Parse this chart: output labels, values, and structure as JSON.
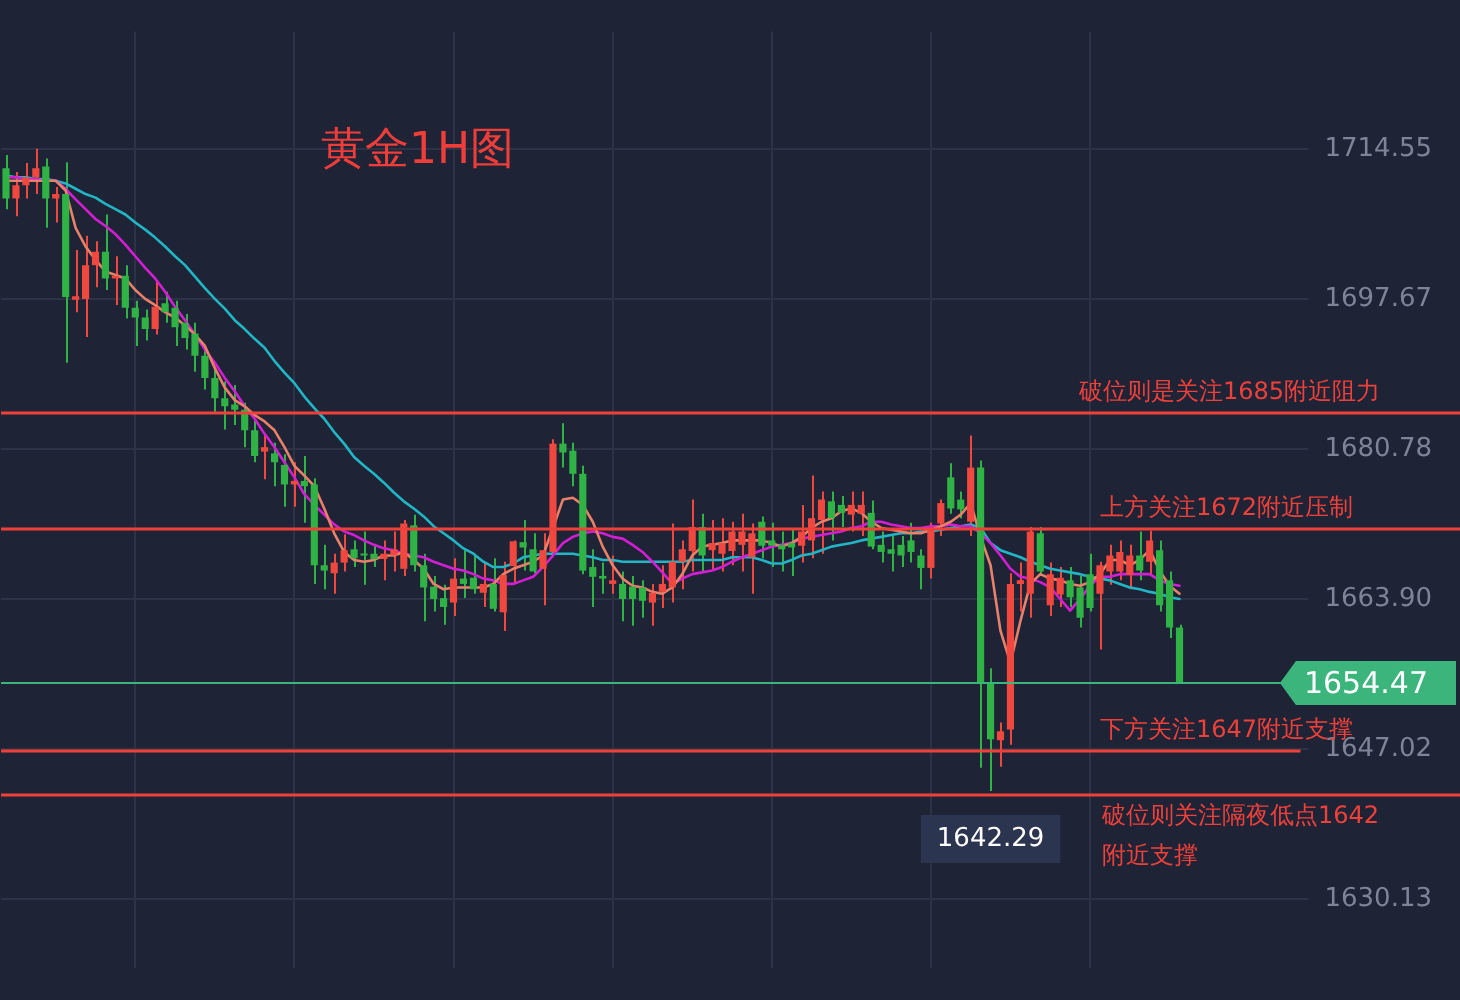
{
  "chart_data": {
    "type": "candlestick",
    "title": "黄金1H图",
    "categories": [
      null,
      null,
      null,
      null,
      null,
      null,
      null,
      null,
      null,
      null,
      null,
      null,
      null,
      null,
      null,
      null,
      null,
      null,
      null,
      null,
      null,
      null,
      null,
      null,
      null,
      null,
      null,
      null,
      null,
      null,
      null,
      null,
      null,
      null,
      null,
      null,
      null,
      null,
      null,
      null,
      null,
      null,
      null,
      null,
      null,
      null,
      null,
      null,
      null,
      null,
      null,
      null,
      null,
      null,
      null,
      null,
      null,
      null,
      null,
      null,
      null,
      null,
      null,
      null,
      null,
      null,
      null,
      null,
      null,
      null,
      null,
      null,
      null,
      null,
      null,
      null,
      null,
      null,
      null,
      null,
      null,
      null,
      null,
      null,
      null,
      null,
      null,
      null,
      null,
      null,
      null,
      null,
      null,
      null,
      null,
      null,
      null,
      null,
      null,
      null,
      null,
      null,
      null,
      null,
      null,
      null,
      null,
      null,
      null,
      null,
      null,
      null,
      null,
      null,
      null,
      null,
      null,
      null,
      null
    ],
    "ohlc": [
      [
        1712.4,
        1713.9,
        1707.8,
        1709.0
      ],
      [
        1709.0,
        1712.0,
        1707.0,
        1710.5
      ],
      [
        1710.5,
        1713.0,
        1709.0,
        1711.4
      ],
      [
        1711.4,
        1714.6,
        1709.5,
        1712.4
      ],
      [
        1712.6,
        1713.5,
        1705.7,
        1709.0
      ],
      [
        1709.0,
        1710.3,
        1706.3,
        1709.5
      ],
      [
        1709.5,
        1713.1,
        1690.5,
        1697.9
      ],
      [
        1697.6,
        1703.2,
        1696.2,
        1698.0
      ],
      [
        1697.7,
        1704.8,
        1693.4,
        1701.5
      ],
      [
        1701.5,
        1704.2,
        1699.0,
        1703.0
      ],
      [
        1703.0,
        1707.2,
        1698.7,
        1700.0
      ],
      [
        1700.0,
        1702.5,
        1697.0,
        1700.3
      ],
      [
        1700.3,
        1701.5,
        1695.5,
        1696.7
      ],
      [
        1696.7,
        1697.5,
        1692.4,
        1695.6
      ],
      [
        1695.6,
        1696.5,
        1693.0,
        1694.3
      ],
      [
        1694.3,
        1699.8,
        1693.7,
        1696.8
      ],
      [
        1697.2,
        1698.5,
        1695.0,
        1696.2
      ],
      [
        1696.7,
        1697.5,
        1692.4,
        1694.5
      ],
      [
        1695.0,
        1696.0,
        1692.0,
        1693.3
      ],
      [
        1693.8,
        1695.0,
        1689.5,
        1691.3
      ],
      [
        1691.3,
        1692.0,
        1687.5,
        1688.8
      ],
      [
        1688.8,
        1689.8,
        1685.0,
        1686.5
      ],
      [
        1686.5,
        1688.4,
        1683.0,
        1685.6
      ],
      [
        1685.8,
        1688.0,
        1683.5,
        1685.2
      ],
      [
        1685.2,
        1686.0,
        1681.0,
        1682.9
      ],
      [
        1682.9,
        1684.0,
        1679.3,
        1680.0
      ],
      [
        1680.5,
        1682.5,
        1677.4,
        1681.0
      ],
      [
        1680.3,
        1681.5,
        1676.6,
        1679.3
      ],
      [
        1679.0,
        1680.2,
        1674.3,
        1676.8
      ],
      [
        1676.8,
        1679.3,
        1674.3,
        1677.2
      ],
      [
        1677.2,
        1680.0,
        1672.5,
        1676.6
      ],
      [
        1676.8,
        1677.5,
        1665.6,
        1667.7
      ],
      [
        1667.7,
        1670.0,
        1665.0,
        1667.1
      ],
      [
        1666.8,
        1669.0,
        1664.5,
        1668.0
      ],
      [
        1668.0,
        1671.2,
        1667.0,
        1669.4
      ],
      [
        1669.5,
        1670.5,
        1667.5,
        1668.5
      ],
      [
        1669.0,
        1671.5,
        1665.5,
        1668.8
      ],
      [
        1669.0,
        1670.0,
        1667.5,
        1668.4
      ],
      [
        1668.4,
        1670.5,
        1666.0,
        1669.0
      ],
      [
        1668.8,
        1671.5,
        1667.0,
        1669.5
      ],
      [
        1667.3,
        1672.8,
        1666.5,
        1672.4
      ],
      [
        1672.2,
        1673.4,
        1667.0,
        1667.7
      ],
      [
        1667.7,
        1669.0,
        1661.4,
        1665.2
      ],
      [
        1665.3,
        1666.5,
        1662.5,
        1663.9
      ],
      [
        1664.0,
        1665.5,
        1661.0,
        1663.0
      ],
      [
        1663.5,
        1668.5,
        1662.0,
        1666.2
      ],
      [
        1666.2,
        1669.4,
        1664.0,
        1665.6
      ],
      [
        1666.3,
        1669.0,
        1664.5,
        1665.0
      ],
      [
        1664.6,
        1668.0,
        1663.0,
        1665.6
      ],
      [
        1665.6,
        1668.5,
        1662.5,
        1662.8
      ],
      [
        1662.4,
        1668.1,
        1660.3,
        1666.6
      ],
      [
        1667.6,
        1670.5,
        1665.6,
        1670.4
      ],
      [
        1670.3,
        1672.8,
        1667.1,
        1669.7
      ],
      [
        1669.5,
        1671.3,
        1666.8,
        1667.0
      ],
      [
        1667.3,
        1671.3,
        1663.2,
        1669.4
      ],
      [
        1669.2,
        1681.9,
        1668.6,
        1681.4
      ],
      [
        1681.4,
        1683.7,
        1678.7,
        1680.4
      ],
      [
        1680.6,
        1681.5,
        1676.6,
        1678.0
      ],
      [
        1678.0,
        1678.9,
        1666.7,
        1667.1
      ],
      [
        1667.5,
        1669.5,
        1663.0,
        1666.4
      ],
      [
        1666.5,
        1668.0,
        1664.5,
        1666.2
      ],
      [
        1665.6,
        1668.8,
        1664.5,
        1666.0
      ],
      [
        1665.6,
        1667.0,
        1661.4,
        1663.9
      ],
      [
        1665.3,
        1666.5,
        1660.9,
        1663.9
      ],
      [
        1665.2,
        1666.0,
        1661.8,
        1663.7
      ],
      [
        1663.5,
        1665.6,
        1660.9,
        1664.6
      ],
      [
        1664.7,
        1667.7,
        1662.9,
        1665.6
      ],
      [
        1665.2,
        1672.4,
        1663.5,
        1668.1
      ],
      [
        1668.1,
        1670.5,
        1665.0,
        1669.5
      ],
      [
        1669.3,
        1675.1,
        1667.0,
        1672.0
      ],
      [
        1672.0,
        1673.5,
        1667.0,
        1668.8
      ],
      [
        1669.4,
        1672.8,
        1667.1,
        1670.2
      ],
      [
        1669.0,
        1673.0,
        1667.0,
        1670.2
      ],
      [
        1669.3,
        1672.6,
        1667.7,
        1671.5
      ],
      [
        1670.0,
        1673.5,
        1667.0,
        1671.5
      ],
      [
        1668.6,
        1672.4,
        1664.5,
        1671.3
      ],
      [
        1672.6,
        1673.2,
        1668.5,
        1669.9
      ],
      [
        1670.5,
        1672.5,
        1667.5,
        1669.9
      ],
      [
        1670.0,
        1671.5,
        1667.0,
        1669.5
      ],
      [
        1670.2,
        1671.8,
        1666.5,
        1669.7
      ],
      [
        1669.9,
        1674.5,
        1668.0,
        1671.5
      ],
      [
        1670.5,
        1677.8,
        1668.5,
        1673.0
      ],
      [
        1672.8,
        1676.0,
        1669.0,
        1675.1
      ],
      [
        1674.9,
        1676.0,
        1670.5,
        1673.0
      ],
      [
        1674.5,
        1675.5,
        1672.0,
        1673.6
      ],
      [
        1673.4,
        1676.0,
        1671.5,
        1674.5
      ],
      [
        1673.5,
        1676.0,
        1671.0,
        1674.5
      ],
      [
        1673.6,
        1675.0,
        1669.5,
        1669.8
      ],
      [
        1670.0,
        1671.5,
        1668.0,
        1669.2
      ],
      [
        1669.5,
        1671.0,
        1667.0,
        1669.0
      ],
      [
        1670.0,
        1671.0,
        1667.5,
        1668.8
      ],
      [
        1670.5,
        1672.5,
        1668.0,
        1669.2
      ],
      [
        1668.8,
        1669.5,
        1665.0,
        1667.4
      ],
      [
        1667.4,
        1672.5,
        1666.2,
        1671.9
      ],
      [
        1672.4,
        1675.1,
        1671.0,
        1674.7
      ],
      [
        1677.6,
        1679.2,
        1673.5,
        1674.1
      ],
      [
        1675.1,
        1676.0,
        1673.0,
        1674.0
      ],
      [
        1672.6,
        1682.3,
        1671.0,
        1678.7
      ],
      [
        1678.7,
        1679.5,
        1644.9,
        1654.4
      ],
      [
        1654.4,
        1656.1,
        1642.29,
        1648.1
      ],
      [
        1648.0,
        1650.0,
        1645.0,
        1649.0
      ],
      [
        1649.2,
        1666.8,
        1647.5,
        1665.6
      ],
      [
        1665.6,
        1668.0,
        1662.5,
        1666.0
      ],
      [
        1664.5,
        1672.0,
        1661.8,
        1671.5
      ],
      [
        1671.3,
        1672.0,
        1666.5,
        1667.0
      ],
      [
        1663.2,
        1668.0,
        1662.0,
        1666.7
      ],
      [
        1664.4,
        1667.5,
        1663.0,
        1666.3
      ],
      [
        1666.0,
        1667.5,
        1663.0,
        1664.1
      ],
      [
        1665.2,
        1666.5,
        1660.7,
        1661.8
      ],
      [
        1666.7,
        1669.0,
        1662.5,
        1662.9
      ],
      [
        1664.5,
        1668.1,
        1658.2,
        1667.7
      ],
      [
        1667.0,
        1670.0,
        1665.5,
        1668.8
      ],
      [
        1667.0,
        1670.5,
        1666.0,
        1669.2
      ],
      [
        1666.6,
        1670.0,
        1665.0,
        1668.8
      ],
      [
        1668.8,
        1671.5,
        1666.0,
        1667.1
      ],
      [
        1668.1,
        1671.6,
        1666.5,
        1670.5
      ],
      [
        1669.4,
        1670.5,
        1662.5,
        1663.2
      ],
      [
        1666.0,
        1667.0,
        1659.5,
        1660.7
      ],
      [
        1660.7,
        1661.0,
        1654.47,
        1654.47
      ]
    ],
    "colors": [
      "#2fb344",
      "#f0483e",
      "#f0483e",
      "#f0483e",
      "#2fb344",
      "#f0483e",
      "#2fb344",
      "#f0483e",
      "#f0483e",
      "#f0483e",
      "#2fb344",
      "#f0483e",
      "#2fb344",
      "#2fb344",
      "#2fb344",
      "#f0483e",
      "#2fb344",
      "#2fb344",
      "#2fb344",
      "#2fb344",
      "#2fb344",
      "#2fb344",
      "#2fb344",
      "#2fb344",
      "#2fb344",
      "#2fb344",
      "#f0483e",
      "#2fb344",
      "#2fb344",
      "#f0483e",
      "#2fb344",
      "#2fb344",
      "#2fb344",
      "#f0483e",
      "#f0483e",
      "#2fb344",
      "#2fb344",
      "#2fb344",
      "#f0483e",
      "#f0483e",
      "#f0483e",
      "#2fb344",
      "#2fb344",
      "#2fb344",
      "#2fb344",
      "#f0483e",
      "#2fb344",
      "#2fb344",
      "#f0483e",
      "#2fb344",
      "#f0483e",
      "#f0483e",
      "#2fb344",
      "#2fb344",
      "#f0483e",
      "#f0483e",
      "#2fb344",
      "#2fb344",
      "#2fb344",
      "#2fb344",
      "#2fb344",
      "#f0483e",
      "#2fb344",
      "#2fb344",
      "#2fb344",
      "#f0483e",
      "#f0483e",
      "#f0483e",
      "#f0483e",
      "#f0483e",
      "#2fb344",
      "#f0483e",
      "#f0483e",
      "#f0483e",
      "#f0483e",
      "#f0483e",
      "#2fb344",
      "#2fb344",
      "#2fb344",
      "#2fb344",
      "#f0483e",
      "#f0483e",
      "#f0483e",
      "#2fb344",
      "#2fb344",
      "#f0483e",
      "#f0483e",
      "#2fb344",
      "#2fb344",
      "#2fb344",
      "#2fb344",
      "#2fb344",
      "#2fb344",
      "#f0483e",
      "#f0483e",
      "#2fb344",
      "#2fb344",
      "#f0483e",
      "#2fb344",
      "#2fb344",
      "#f0483e",
      "#f0483e",
      "#f0483e",
      "#f0483e",
      "#2fb344",
      "#f0483e",
      "#f0483e",
      "#2fb344",
      "#2fb344",
      "#2fb344",
      "#f0483e",
      "#f0483e",
      "#f0483e",
      "#f0483e",
      "#2fb344",
      "#f0483e",
      "#2fb344",
      "#2fb344",
      "#2fb344"
    ],
    "series": [
      {
        "type": "line",
        "color": "#e8806a",
        "values": [
          1711.0,
          1711.0,
          1711.0,
          1711.0,
          1711.0,
          1711.0,
          1709.9,
          1705.7,
          1703.6,
          1702.1,
          1700.8,
          1700.4,
          1700.0,
          1698.7,
          1697.7,
          1697.0,
          1696.2,
          1695.6,
          1694.7,
          1693.7,
          1692.4,
          1689.9,
          1687.7,
          1686.3,
          1685.6,
          1684.6,
          1683.9,
          1682.9,
          1681.0,
          1678.9,
          1677.8,
          1676.6,
          1674.1,
          1671.3,
          1669.2,
          1668.3,
          1668.1,
          1668.3,
          1668.8,
          1668.8,
          1669.2,
          1668.3,
          1667.3,
          1665.6,
          1665.0,
          1665.2,
          1665.2,
          1665.2,
          1665.2,
          1665.6,
          1666.7,
          1667.3,
          1667.7,
          1668.1,
          1668.8,
          1671.9,
          1675.1,
          1675.3,
          1674.5,
          1672.6,
          1669.8,
          1667.7,
          1666.2,
          1665.4,
          1665.2,
          1664.7,
          1664.5,
          1665.2,
          1666.7,
          1668.8,
          1669.8,
          1670.0,
          1670.2,
          1670.5,
          1670.5,
          1670.5,
          1670.5,
          1670.2,
          1669.8,
          1670.2,
          1670.9,
          1671.9,
          1672.6,
          1673.0,
          1673.8,
          1674.1,
          1673.6,
          1672.6,
          1671.9,
          1671.7,
          1671.5,
          1671.3,
          1671.3,
          1671.7,
          1672.1,
          1672.6,
          1673.4,
          1674.7,
          1670.9,
          1667.7,
          1660.3,
          1656.7,
          1661.4,
          1665.6,
          1666.7,
          1666.2,
          1666.0,
          1665.6,
          1665.4,
          1665.8,
          1666.7,
          1668.3,
          1668.3,
          1667.7,
          1668.3,
          1669.4,
          1667.1,
          1665.4,
          1664.5
        ]
      },
      {
        "type": "line",
        "color": "#d41ed4",
        "values": [
          1711.4,
          1711.4,
          1711.2,
          1711.2,
          1711.0,
          1711.0,
          1710.1,
          1708.9,
          1707.8,
          1706.7,
          1705.9,
          1705.0,
          1703.8,
          1702.5,
          1701.2,
          1700.0,
          1698.5,
          1696.8,
          1695.3,
          1693.7,
          1692.0,
          1690.5,
          1688.8,
          1687.3,
          1685.6,
          1684.2,
          1682.5,
          1681.0,
          1679.3,
          1677.6,
          1675.7,
          1674.5,
          1673.4,
          1672.3,
          1671.5,
          1671.1,
          1670.5,
          1670.0,
          1669.6,
          1669.4,
          1669.0,
          1668.8,
          1668.6,
          1668.1,
          1667.7,
          1667.3,
          1667.1,
          1666.7,
          1666.2,
          1666.0,
          1665.6,
          1665.6,
          1666.0,
          1666.4,
          1667.5,
          1668.8,
          1670.2,
          1670.9,
          1671.3,
          1671.5,
          1671.3,
          1670.9,
          1670.7,
          1670.0,
          1669.2,
          1668.1,
          1666.9,
          1665.6,
          1666.2,
          1666.7,
          1666.9,
          1667.1,
          1667.5,
          1668.1,
          1668.6,
          1669.0,
          1669.4,
          1669.8,
          1670.0,
          1670.2,
          1670.7,
          1670.9,
          1671.1,
          1671.3,
          1671.5,
          1671.9,
          1672.1,
          1672.6,
          1672.6,
          1672.3,
          1672.1,
          1671.9,
          1671.9,
          1672.1,
          1672.1,
          1672.3,
          1672.1,
          1672.1,
          1671.3,
          1670.2,
          1668.8,
          1667.3,
          1666.4,
          1666.2,
          1665.8,
          1665.2,
          1663.9,
          1662.6,
          1663.9,
          1665.4,
          1666.4,
          1666.4,
          1666.7,
          1666.7,
          1666.7,
          1666.7,
          1666.0,
          1665.6,
          1665.4
        ]
      },
      {
        "type": "line",
        "color": "#22b5c4",
        "values": [
          1711.6,
          1711.4,
          1711.4,
          1711.2,
          1711.2,
          1711.0,
          1710.7,
          1710.1,
          1709.5,
          1709.1,
          1708.4,
          1707.8,
          1707.2,
          1706.3,
          1705.5,
          1704.6,
          1703.6,
          1702.5,
          1701.5,
          1700.2,
          1698.9,
          1697.7,
          1696.6,
          1695.3,
          1694.3,
          1693.2,
          1692.2,
          1690.7,
          1689.4,
          1688.2,
          1686.7,
          1685.4,
          1684.2,
          1682.7,
          1681.4,
          1679.9,
          1678.9,
          1678.0,
          1677.0,
          1675.9,
          1674.9,
          1674.1,
          1673.2,
          1672.1,
          1671.3,
          1670.5,
          1669.6,
          1669.0,
          1668.1,
          1667.5,
          1667.5,
          1667.9,
          1668.6,
          1668.8,
          1669.0,
          1669.0,
          1669.0,
          1669.0,
          1668.8,
          1668.6,
          1668.3,
          1668.3,
          1668.1,
          1668.1,
          1668.1,
          1668.1,
          1668.1,
          1668.1,
          1668.1,
          1668.3,
          1668.3,
          1668.3,
          1668.3,
          1668.6,
          1668.6,
          1668.6,
          1668.3,
          1667.9,
          1667.9,
          1668.3,
          1668.8,
          1669.0,
          1669.4,
          1669.8,
          1670.0,
          1670.2,
          1670.5,
          1670.7,
          1670.9,
          1671.1,
          1671.3,
          1671.3,
          1671.5,
          1671.5,
          1671.7,
          1671.9,
          1672.1,
          1672.3,
          1671.9,
          1670.2,
          1669.4,
          1669.0,
          1668.6,
          1668.1,
          1667.7,
          1667.3,
          1667.1,
          1666.9,
          1666.7,
          1666.4,
          1666.2,
          1666.0,
          1665.6,
          1665.2,
          1665.0,
          1664.7,
          1664.5,
          1664.1,
          1663.9
        ]
      }
    ],
    "ylim": [
      1622.3,
      1727.8
    ],
    "yticks": [
      1714.55,
      1697.67,
      1680.78,
      {
        "value": 1663.9,
        "label": "1663.90"
      },
      1647.02,
      1630.13
    ],
    "grid": true,
    "legend": false,
    "ref_lines": [
      {
        "axis": "y",
        "value": 1685,
        "label": "破位则是关注1685附近阻力",
        "color": "#f0403a"
      },
      {
        "axis": "y",
        "value": 1672,
        "label": "上方关注1672附近压制",
        "color": "#f0403a"
      },
      {
        "axis": "y",
        "value": 1654.47,
        "label": "1654.47",
        "color": "#3cb57d"
      },
      {
        "axis": "y",
        "value": 1647,
        "label": "下方关注1647附近支撑",
        "color": "#f0403a"
      },
      {
        "axis": "y",
        "value": 1642,
        "label": "破位则关注隔夜低点1642附近支撑",
        "color": "#f0403a"
      }
    ],
    "annotations": [
      {
        "text": "1642.29",
        "y": 1642.29
      }
    ]
  }
}
